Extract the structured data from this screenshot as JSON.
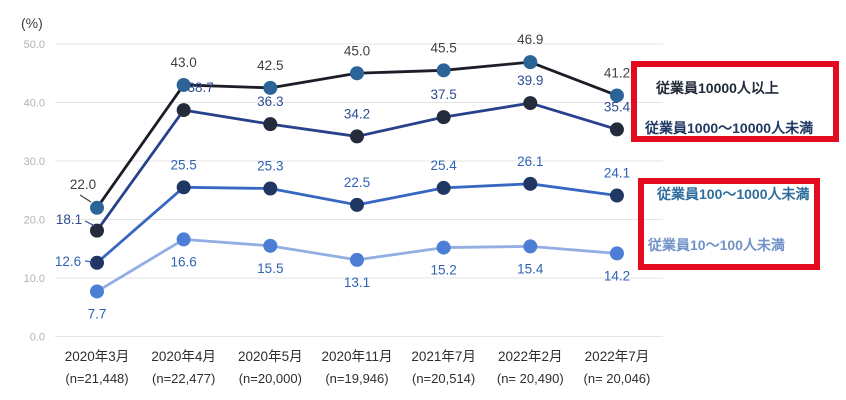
{
  "page": {
    "background": "#ffffff"
  },
  "chart_data": {
    "type": "line",
    "unit_label": "(%)",
    "ylim": [
      0,
      50
    ],
    "grid": true,
    "yticks": [
      0,
      10,
      20,
      30,
      40,
      50
    ],
    "ytick_labels": [
      "0.0",
      "10.0",
      "20.0",
      "30.0",
      "40.0",
      "50.0"
    ],
    "categories": [
      "2020年3月",
      "2020年4月",
      "2020年5月",
      "2020年11月",
      "2021年7月",
      "2022年2月",
      "2022年7月"
    ],
    "category_sublabels": [
      "(n=21,448)",
      "(n=22,477)",
      "(n=20,000)",
      "(n=19,946)",
      "(n=20,514)",
      "(n= 20,490)",
      "(n= 20,046)"
    ],
    "series": [
      {
        "name": "従業員10000人以上",
        "values": [
          22.0,
          43.0,
          42.5,
          45.0,
          45.5,
          46.9,
          41.2
        ],
        "line_color": "#1b1e27",
        "marker_color": "#2d6497",
        "label_color": "#3f3f3f",
        "label_side": "above"
      },
      {
        "name": "従業員1000〜10000人未満",
        "values": [
          18.1,
          38.7,
          36.3,
          34.2,
          37.5,
          39.9,
          35.4
        ],
        "line_color": "#28418c",
        "marker_color": "#242b3a",
        "label_color": "#2b4d94",
        "label_side": "above"
      },
      {
        "name": "従業員100〜1000人未満",
        "values": [
          12.6,
          25.5,
          25.3,
          22.5,
          25.4,
          26.1,
          24.1
        ],
        "line_color": "#3867c2",
        "marker_color": "#203764",
        "label_color": "#2f62b5",
        "label_side": "above"
      },
      {
        "name": "従業員10〜100人未満",
        "values": [
          7.7,
          16.6,
          15.5,
          13.1,
          15.2,
          15.4,
          14.2
        ],
        "line_color": "#92afe3",
        "marker_color": "#4d7ed6",
        "label_color": "#2f62b5",
        "label_side": "below"
      }
    ],
    "legend_position": "right",
    "legend_groups": [
      {
        "box_color": "#e30b1e",
        "labels": [
          {
            "text": "従業員10000人以上",
            "color": "#202a38"
          },
          {
            "text": "従業員1000〜10000人未満",
            "color": "#1f3864"
          }
        ]
      },
      {
        "box_color": "#e30b1e",
        "labels": [
          {
            "text": "従業員100〜1000人未満",
            "color": "#2e6d9c"
          },
          {
            "text": "従業員10〜100人未満",
            "color": "#7092c8"
          }
        ]
      }
    ],
    "axis_colors": {
      "tick_label": "#b3b3b3",
      "grid_line": "#e4e4e4",
      "x_label": "#2e2e2e",
      "unit_label": "#3d3d3d"
    }
  }
}
